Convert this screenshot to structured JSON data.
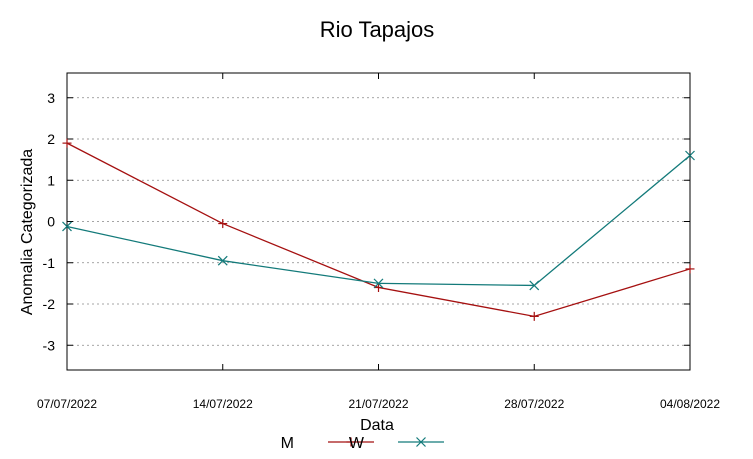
{
  "chart_data": {
    "type": "line",
    "title": "Rio Tapajos",
    "xlabel": "Data",
    "ylabel": "Anomalia Categorizada",
    "categories": [
      "07/07/2022",
      "14/07/2022",
      "21/07/2022",
      "28/07/2022",
      "04/08/2022"
    ],
    "ylim": [
      -3.6,
      3.6
    ],
    "yticks": [
      -3,
      -2,
      -1,
      0,
      1,
      2,
      3
    ],
    "grid": "horizontal-dashed",
    "legend_position": "bottom-center",
    "series": [
      {
        "name": "M",
        "color": "#a51010",
        "marker": "plus",
        "values": [
          1.9,
          -0.05,
          -1.6,
          -2.3,
          -1.15
        ]
      },
      {
        "name": "W",
        "color": "#137a7a",
        "marker": "x",
        "values": [
          -0.12,
          -0.95,
          -1.5,
          -1.55,
          1.6
        ]
      }
    ]
  }
}
